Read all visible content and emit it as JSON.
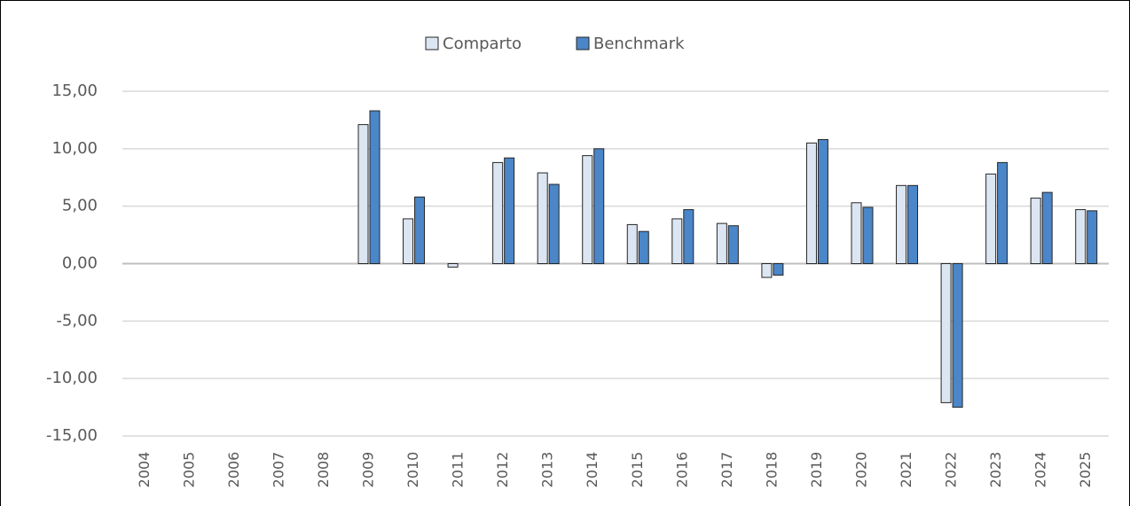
{
  "chart_data": {
    "type": "bar",
    "categories": [
      "2004",
      "2005",
      "2006",
      "2007",
      "2008",
      "2009",
      "2010",
      "2011",
      "2012",
      "2013",
      "2014",
      "2015",
      "2016",
      "2017",
      "2018",
      "2019",
      "2020",
      "2021",
      "2022",
      "2023",
      "2024",
      "2025"
    ],
    "series": [
      {
        "name": "Comparto",
        "color": "#dce6f2",
        "values": [
          null,
          null,
          null,
          null,
          null,
          12.1,
          3.9,
          -0.3,
          8.8,
          7.9,
          9.4,
          3.4,
          3.9,
          3.5,
          -1.2,
          10.5,
          5.3,
          6.8,
          -12.1,
          7.8,
          5.7,
          4.7
        ]
      },
      {
        "name": "Benchmark",
        "color": "#4a86c8",
        "values": [
          null,
          null,
          null,
          null,
          null,
          13.3,
          5.8,
          null,
          9.2,
          6.9,
          10.0,
          2.8,
          4.7,
          3.3,
          -1.0,
          10.8,
          4.9,
          6.8,
          -12.5,
          8.8,
          6.2,
          4.6
        ]
      }
    ],
    "ylim": [
      -15,
      15
    ],
    "yticks": [
      {
        "value": -15,
        "label": "-15,00"
      },
      {
        "value": -10,
        "label": "-10,00"
      },
      {
        "value": -5,
        "label": "-5,00"
      },
      {
        "value": 0,
        "label": "0,00"
      },
      {
        "value": 5,
        "label": "5,00"
      },
      {
        "value": 10,
        "label": "10,00"
      },
      {
        "value": 15,
        "label": "15,00"
      }
    ],
    "grid": true,
    "legend": "top"
  }
}
